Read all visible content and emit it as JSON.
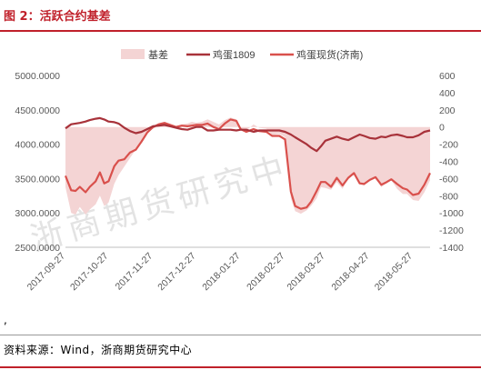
{
  "header": {
    "title": "图 2：活跃合约基差"
  },
  "footer": {
    "comma": ",",
    "source": "资料来源：Wind，浙商期货研究中心"
  },
  "watermark": "浙商期货研究中心",
  "colors": {
    "accent": "#c0202a",
    "basis_fill": "#f4d4d4",
    "futures_line": "#a8323a",
    "spot_line": "#d9504c",
    "axis_text": "#595959",
    "grid": "#d9d9d9"
  },
  "chart_data": {
    "type": "line",
    "title": "",
    "categories": [
      "2017-09-27",
      "2017-10-01",
      "2017-10-04",
      "2017-10-07",
      "2017-10-11",
      "2017-10-14",
      "2017-10-18",
      "2017-10-21",
      "2017-10-24",
      "2017-10-27",
      "2017-10-31",
      "2017-11-03",
      "2017-11-07",
      "2017-11-11",
      "2017-11-15",
      "2017-11-19",
      "2017-11-23",
      "2017-11-27",
      "2017-12-01",
      "2017-12-05",
      "2017-12-09",
      "2017-12-13",
      "2017-12-17",
      "2017-12-21",
      "2017-12-24",
      "2017-12-27",
      "2017-12-31",
      "2018-01-04",
      "2018-01-08",
      "2018-01-12",
      "2018-01-16",
      "2018-01-20",
      "2018-01-24",
      "2018-01-27",
      "2018-01-31",
      "2018-02-05",
      "2018-02-09",
      "2018-02-14",
      "2018-02-18",
      "2018-02-23",
      "2018-02-27",
      "2018-03-03",
      "2018-03-06",
      "2018-03-10",
      "2018-03-14",
      "2018-03-17",
      "2018-03-21",
      "2018-03-24",
      "2018-03-27",
      "2018-03-31",
      "2018-04-04",
      "2018-04-08",
      "2018-04-12",
      "2018-04-16",
      "2018-04-20",
      "2018-04-23",
      "2018-04-27",
      "2018-05-01",
      "2018-05-05",
      "2018-05-08",
      "2018-05-12",
      "2018-05-16",
      "2018-05-20",
      "2018-05-23",
      "2018-05-27",
      "2018-05-31",
      "2018-06-04",
      "2018-06-08"
    ],
    "x_tick_labels": [
      "2017-09-27",
      "2017-10-27",
      "2017-11-27",
      "2017-12-27",
      "2018-01-27",
      "2018-02-27",
      "2018-03-27",
      "2018-04-27",
      "2018-05-27"
    ],
    "left_axis": {
      "min": 2500,
      "max": 5000,
      "ticks": [
        "2500.0000",
        "3000.0000",
        "3500.0000",
        "4000.0000",
        "4500.0000",
        "5000.0000"
      ]
    },
    "right_axis": {
      "min": -1400,
      "max": 600,
      "ticks": [
        "-1400",
        "-1200",
        "-1000",
        "-800",
        "-600",
        "-400",
        "-200",
        "0",
        "200",
        "400",
        "600"
      ]
    },
    "legend": {
      "position": "top"
    },
    "series": [
      {
        "name": "基差",
        "chart": "area",
        "axis": "right",
        "values": [
          -700,
          -1000,
          -1020,
          -930,
          -1020,
          -960,
          -900,
          -800,
          -920,
          -880,
          -660,
          -560,
          -460,
          -360,
          -260,
          -170,
          -60,
          -20,
          10,
          40,
          20,
          10,
          30,
          40,
          60,
          50,
          60,
          90,
          60,
          30,
          80,
          110,
          90,
          -10,
          -40,
          30,
          -10,
          -20,
          -90,
          -80,
          -120,
          -830,
          -980,
          -1010,
          -970,
          -920,
          -830,
          -700,
          -710,
          -730,
          -640,
          -720,
          -600,
          -540,
          -660,
          -680,
          -620,
          -580,
          -700,
          -660,
          -620,
          -720,
          -780,
          -780,
          -850,
          -860,
          -760,
          -620
        ]
      },
      {
        "name": "鸡蛋1809",
        "chart": "line",
        "axis": "left",
        "values": [
          4230,
          4290,
          4300,
          4310,
          4330,
          4350,
          4370,
          4380,
          4360,
          4330,
          4320,
          4300,
          4240,
          4190,
          4160,
          4180,
          4220,
          4260,
          4270,
          4280,
          4260,
          4240,
          4220,
          4210,
          4230,
          4250,
          4250,
          4200,
          4200,
          4210,
          4210,
          4210,
          4200,
          4210,
          4210,
          4180,
          4200,
          4200,
          4200,
          4200,
          4180,
          4140,
          4100,
          4050,
          4000,
          3950,
          3900,
          3970,
          4050,
          4080,
          4110,
          4080,
          4060,
          4100,
          4140,
          4120,
          4090,
          4080,
          4110,
          4100,
          4130,
          4140,
          4120,
          4100,
          4100,
          4130,
          4180,
          4200
        ]
      },
      {
        "name": "鸡蛋现货(济南)",
        "chart": "line",
        "axis": "left",
        "values": [
          3540,
          3330,
          3320,
          3380,
          3300,
          3380,
          3460,
          3590,
          3430,
          3460,
          3680,
          3760,
          3780,
          3880,
          3920,
          4040,
          4170,
          4250,
          4290,
          4310,
          4280,
          4250,
          4270,
          4260,
          4270,
          4280,
          4280,
          4300,
          4250,
          4220,
          4300,
          4360,
          4340,
          4220,
          4180,
          4220,
          4190,
          4180,
          4120,
          4120,
          4070,
          3310,
          3100,
          3060,
          3080,
          3160,
          3320,
          3450,
          3450,
          3380,
          3510,
          3400,
          3510,
          3580,
          3430,
          3420,
          3480,
          3520,
          3410,
          3440,
          3490,
          3420,
          3360,
          3340,
          3260,
          3280,
          3410,
          3580
        ]
      }
    ]
  }
}
